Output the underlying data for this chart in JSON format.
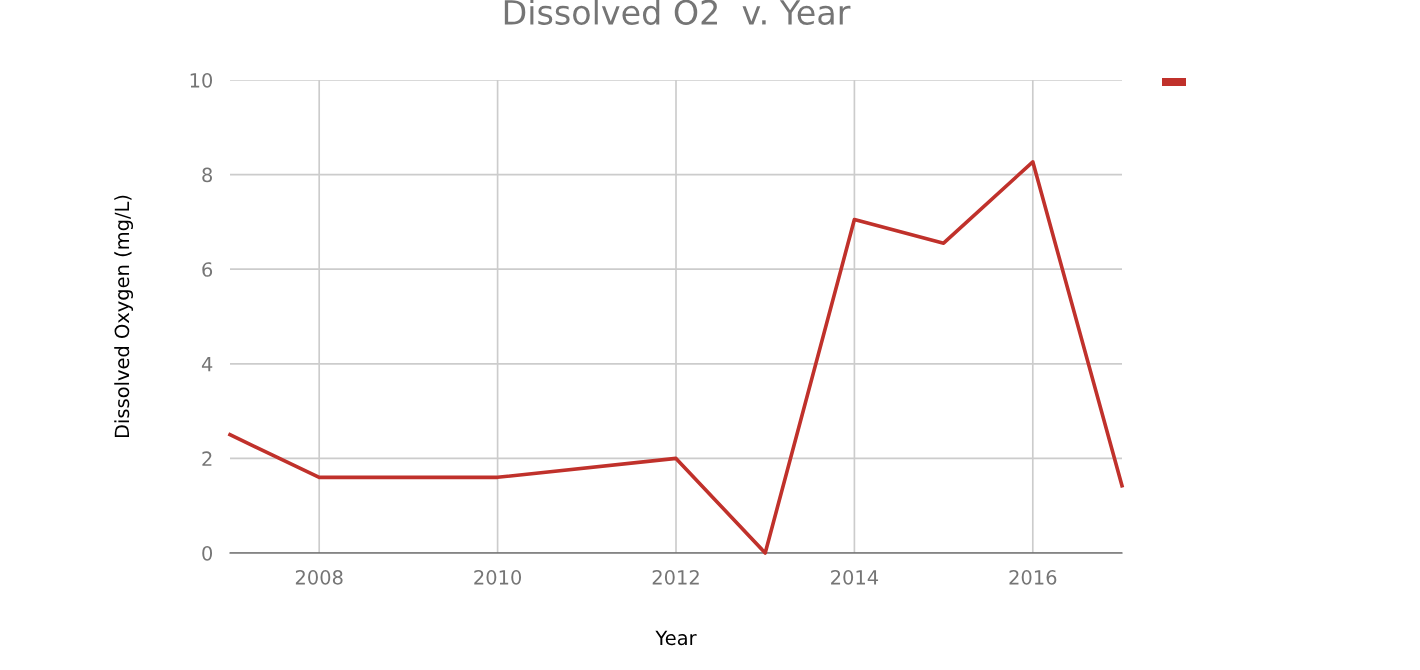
{
  "chart_data": {
    "type": "line",
    "title": "Dissolved O2  v. Year",
    "xlabel": "Year",
    "ylabel": "Dissolved Oxygen (mg/L)",
    "x": [
      2007,
      2008,
      2010,
      2012,
      2013,
      2014,
      2015,
      2016,
      2017
    ],
    "series": [
      {
        "color": "#c0312b",
        "values": [
          2.5,
          1.6,
          1.6,
          2.0,
          0,
          7.05,
          6.55,
          8.27,
          1.42
        ]
      }
    ],
    "xlim": [
      2007,
      2017
    ],
    "xticks": [
      2008,
      2010,
      2012,
      2014,
      2016
    ],
    "ylim": [
      0,
      10
    ],
    "yticks": [
      0,
      2,
      4,
      6,
      8,
      10
    ],
    "grid": true,
    "marker": "none",
    "line_style": "solid"
  }
}
